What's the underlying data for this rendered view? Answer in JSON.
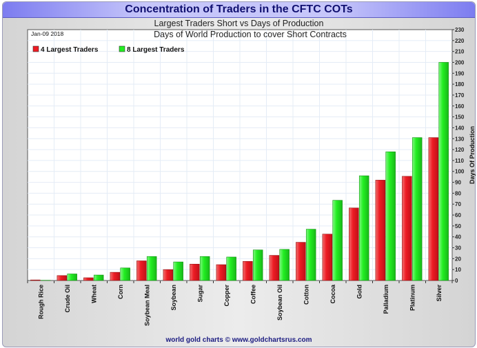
{
  "chart_data": {
    "type": "bar",
    "title": "Concentration of Traders in the CFTC COTs",
    "subtitle": "Largest Traders Short vs Days of Production",
    "inner_title": "Days of World Production to cover Short Contracts",
    "date": "Jan-09  2018",
    "ylabel": "Days Of Production",
    "ylim": [
      0,
      230
    ],
    "ytick_step": 10,
    "grid": true,
    "legend_placement": "top-left",
    "categories": [
      "Rough Rice",
      "Crude Oil",
      "Wheat",
      "Corn",
      "Soybean Meal",
      "Soybean",
      "Sugar",
      "Copper",
      "Coffee",
      "Soybean Oil",
      "Cotton",
      "Cocoa",
      "Gold",
      "Palladium",
      "Platinum",
      "Silver"
    ],
    "series": [
      {
        "name": "4 Largest Traders",
        "color": "#ee1c24",
        "values": [
          0.5,
          4.5,
          2.5,
          7.5,
          18,
          10,
          15,
          14.5,
          17.5,
          23,
          35,
          42.5,
          66.5,
          92,
          95.5,
          131
        ]
      },
      {
        "name": "8 Largest Traders",
        "color": "#22ee22",
        "values": [
          0.2,
          6,
          5,
          11.5,
          22,
          17,
          22,
          21.5,
          28,
          28.5,
          47,
          73.5,
          96,
          118,
          131,
          200
        ]
      }
    ],
    "footer": "world gold charts © www.goldchartsrus.com"
  }
}
